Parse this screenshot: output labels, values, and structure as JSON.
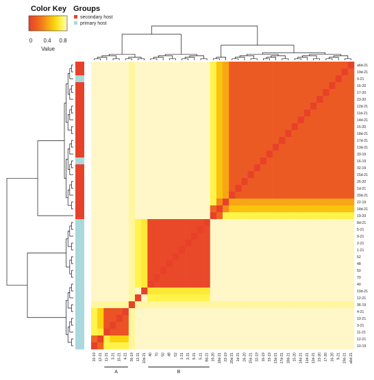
{
  "chart_data": {
    "type": "heatmap",
    "color_key": {
      "title": "Color Key",
      "value_label": "Value",
      "ticks": [
        "0",
        "0.4",
        "0.8"
      ],
      "range": [
        0,
        0.9
      ],
      "colors": [
        "#e8412a",
        "#ec5a23",
        "#f27a1a",
        "#f7a614",
        "#fbd20d",
        "#fff34c",
        "#fff7c8"
      ]
    },
    "groups": {
      "title": "Groups",
      "entries": [
        {
          "label": "secondary host",
          "color": "#e8412a"
        },
        {
          "label": "primary host",
          "color": "#a9d9dc"
        }
      ]
    },
    "labels": [
      "10-19",
      "12-21",
      "11-21",
      "3-21",
      "10-21",
      "4-21",
      "36-19",
      "12-21",
      "10d-21",
      "40",
      "70",
      "50",
      "48",
      "52",
      "1-21",
      "2-21",
      "9-21",
      "5-21",
      "8d-21",
      "19-20",
      "18d-21",
      "22-19",
      "20d-21",
      "1d-21",
      "26-20",
      "15d-21",
      "32-19",
      "16-19",
      "33-19",
      "13d-21",
      "17d-21",
      "18d-21",
      "15-20",
      "14d-21",
      "11d-21",
      "12d-21",
      "23-20",
      "17-20",
      "16-20",
      "9-21",
      "19d-21",
      "a6d-21"
    ],
    "group_membership": [
      "primary",
      "primary",
      "primary",
      "primary",
      "primary",
      "primary",
      "primary",
      "primary",
      "primary",
      "primary",
      "primary",
      "primary",
      "primary",
      "primary",
      "primary",
      "primary",
      "primary",
      "primary",
      "primary",
      "secondary",
      "secondary",
      "secondary",
      "secondary",
      "secondary",
      "secondary",
      "secondary",
      "secondary",
      "primary",
      "secondary",
      "secondary",
      "secondary",
      "secondary",
      "secondary",
      "secondary",
      "secondary",
      "secondary",
      "secondary",
      "secondary",
      "secondary",
      "primary",
      "secondary",
      "secondary"
    ],
    "cluster_brackets": [
      {
        "label": "A",
        "from": "11-21",
        "to": "4-21"
      },
      {
        "label": "B",
        "from": "40",
        "to": "8d-21"
      }
    ],
    "blocks": [
      {
        "from": 2,
        "to": 5,
        "value": 0.1
      },
      {
        "from": 9,
        "to": 18,
        "value": 0.05
      },
      {
        "from": 21,
        "to": 41,
        "value": 0.15
      }
    ]
  }
}
